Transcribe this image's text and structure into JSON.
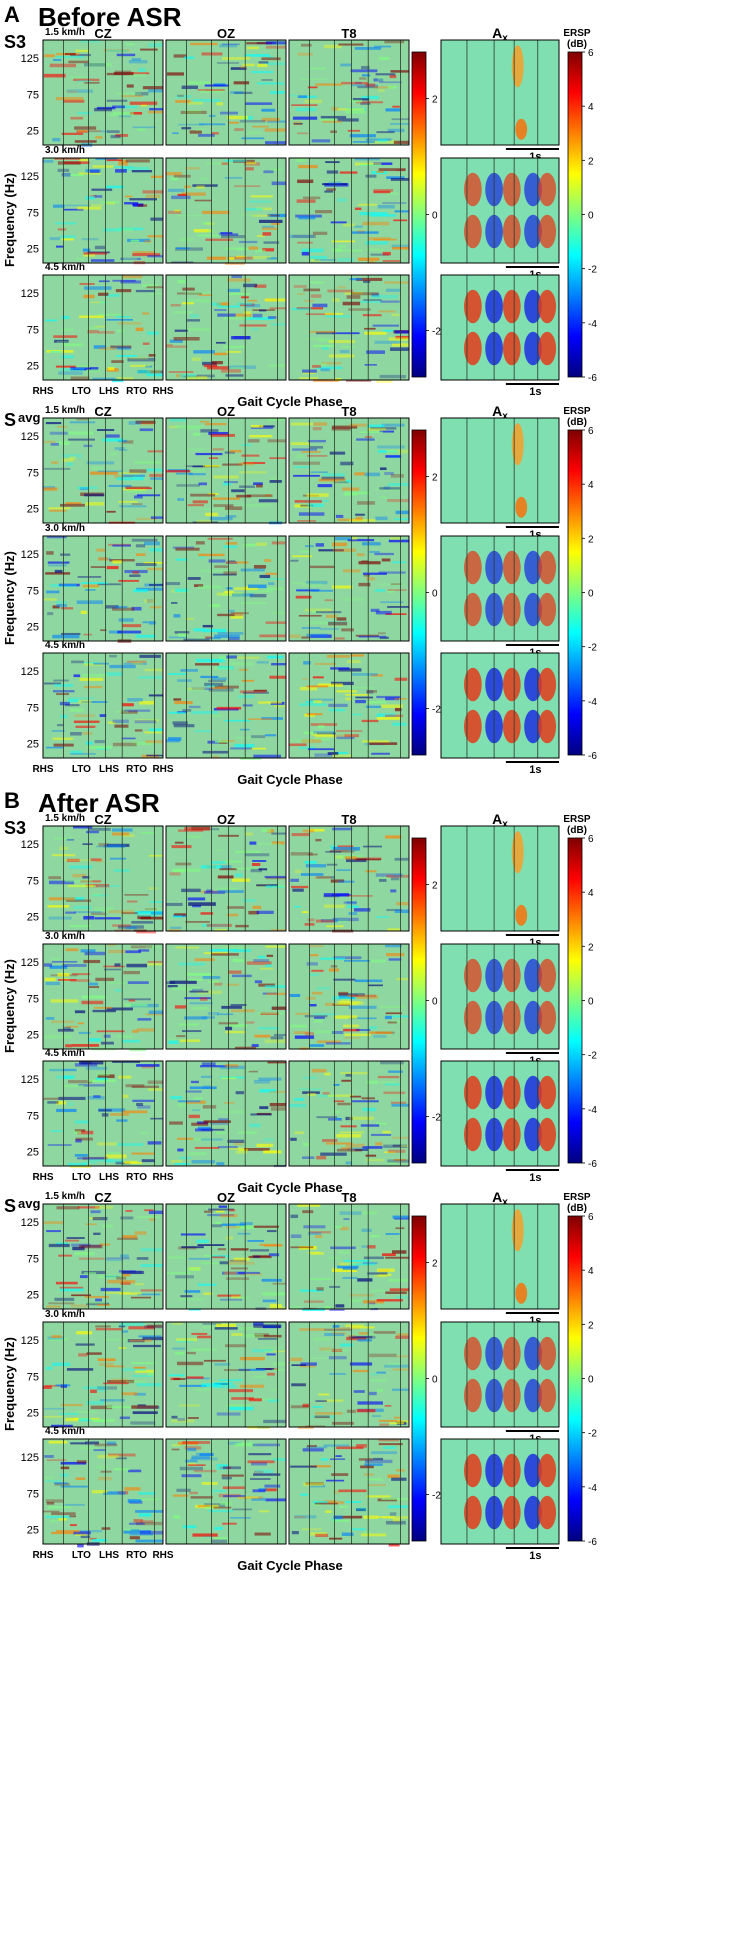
{
  "figure": {
    "channels": [
      "CZ",
      "OZ",
      "T8"
    ],
    "acc_channel": {
      "base": "A",
      "sub": "x"
    },
    "speeds": [
      "1.5 km/h",
      "3.0 km/h",
      "4.5 km/h"
    ],
    "y_ticks": [
      "125",
      "75",
      "25"
    ],
    "y_tick_values": [
      125,
      75,
      25
    ],
    "y_range": [
      5,
      150
    ],
    "y_axis_label": "Frequency (Hz)",
    "x_axis_label": "Gait Cycle Phase",
    "gait_events": [
      "RHS",
      "LTO",
      "LHS",
      "RTO",
      "RHS"
    ],
    "time_scale_label": "1s",
    "eeg_colorbar": {
      "ticks": [
        "2",
        "0",
        "-2"
      ],
      "tick_values": [
        2,
        0,
        -2
      ],
      "range": [
        -2.8,
        2.8
      ]
    },
    "acc_colorbar": {
      "title_line1": "ERSP",
      "title_line2": "(dB)",
      "ticks": [
        "6",
        "4",
        "2",
        "0",
        "-2",
        "-4",
        "-6"
      ],
      "tick_values": [
        6,
        4,
        2,
        0,
        -2,
        -4,
        -6
      ],
      "range": [
        -6,
        6
      ]
    },
    "panels": [
      {
        "letter": "A",
        "title": "Before ASR",
        "blocks": [
          {
            "subject_main": "S3",
            "subject_sub": ""
          },
          {
            "subject_main": "S",
            "subject_sub": "avg"
          }
        ]
      },
      {
        "letter": "B",
        "title": "After ASR",
        "blocks": [
          {
            "subject_main": "S3",
            "subject_sub": ""
          },
          {
            "subject_main": "S",
            "subject_sub": "avg"
          }
        ]
      }
    ]
  },
  "colors": {
    "jet": [
      "#00007f",
      "#0000ff",
      "#007fff",
      "#00ffff",
      "#7fff7f",
      "#ffff00",
      "#ff7f00",
      "#ff0000",
      "#7f0000"
    ],
    "background_field": "#8fd7a0"
  }
}
